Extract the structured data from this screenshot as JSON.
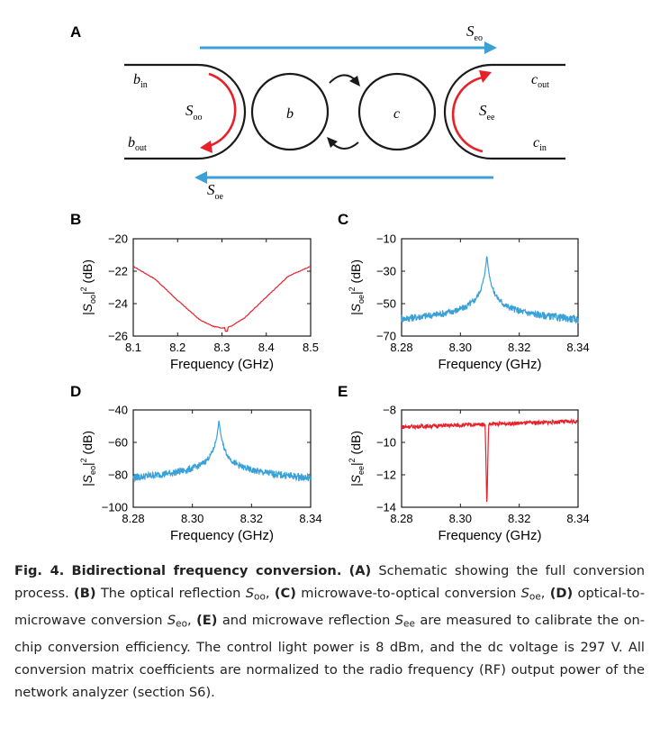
{
  "panels": {
    "A": {
      "letter": "A",
      "labels": {
        "b_in": {
          "main": "b",
          "sub": "in"
        },
        "b_out": {
          "main": "b",
          "sub": "out"
        },
        "c_out": {
          "main": "c",
          "sub": "out"
        },
        "c_in": {
          "main": "c",
          "sub": "in"
        },
        "s_oo": {
          "main": "S",
          "sub": "oo"
        },
        "s_ee": {
          "main": "S",
          "sub": "ee"
        },
        "s_eo": {
          "main": "S",
          "sub": "eo"
        },
        "s_oe": {
          "main": "S",
          "sub": "oe"
        },
        "res_b": "b",
        "res_c": "c"
      },
      "colors": {
        "red": "#e8202a",
        "blue": "#3aa0d8",
        "black": "#1a1a1a"
      }
    }
  },
  "chart_data": [
    {
      "panel": "B",
      "type": "line",
      "color": "#e8202a",
      "xlabel": "Frequency (GHz)",
      "ylabel": {
        "main": "|S",
        "sub": "oo",
        "sup": "2",
        "tail": " (dB)"
      },
      "xlim": [
        8.1,
        8.5
      ],
      "ylim": [
        -26,
        -20
      ],
      "xticks": [
        "8.1",
        "8.2",
        "8.3",
        "8.4",
        "8.5"
      ],
      "yticks": [
        "-20",
        "-22",
        "-24",
        "-26"
      ],
      "x": [
        8.1,
        8.15,
        8.2,
        8.25,
        8.28,
        8.3,
        8.32,
        8.35,
        8.4,
        8.45,
        8.5
      ],
      "y": [
        -21.7,
        -22.5,
        -23.8,
        -25.0,
        -25.4,
        -25.5,
        -25.4,
        -24.9,
        -23.6,
        -22.3,
        -21.7
      ],
      "dip": {
        "x": 8.31,
        "y": -25.7
      }
    },
    {
      "panel": "C",
      "type": "line",
      "color": "#3aa0d8",
      "xlabel": "Frequency (GHz)",
      "ylabel": {
        "main": "|S",
        "sub": "oe",
        "sup": "2",
        "tail": " (dB)"
      },
      "xlim": [
        8.28,
        8.34
      ],
      "ylim": [
        -70,
        -10
      ],
      "xticks": [
        "8.28",
        "8.30",
        "8.32",
        "8.34"
      ],
      "yticks": [
        "-10",
        "-30",
        "-50",
        "-70"
      ],
      "peak": {
        "x": 8.309,
        "y": -20,
        "base": -60,
        "width": 0.003,
        "noise": 2.5
      }
    },
    {
      "panel": "D",
      "type": "line",
      "color": "#3aa0d8",
      "xlabel": "Frequency (GHz)",
      "ylabel": {
        "main": "|S",
        "sub": "eo",
        "sup": "2",
        "tail": " (dB)"
      },
      "xlim": [
        8.28,
        8.34
      ],
      "ylim": [
        -100,
        -40
      ],
      "xticks": [
        "8.28",
        "8.30",
        "8.32",
        "8.34"
      ],
      "yticks": [
        "-40",
        "-60",
        "-80",
        "-100"
      ],
      "peak": {
        "x": 8.309,
        "y": -46,
        "base": -82,
        "width": 0.003,
        "noise": 2.5
      }
    },
    {
      "panel": "E",
      "type": "line",
      "color": "#e8202a",
      "xlabel": "Frequency (GHz)",
      "ylabel": {
        "main": "|S",
        "sub": "ee",
        "sup": "2",
        "tail": " (dB)"
      },
      "xlim": [
        8.28,
        8.34
      ],
      "ylim": [
        -14,
        -8
      ],
      "xticks": [
        "8.28",
        "8.30",
        "8.32",
        "8.34"
      ],
      "yticks": [
        "-8",
        "-10",
        "-12",
        "-14"
      ],
      "dipline": {
        "x": 8.309,
        "y": -14,
        "base": -8.8,
        "width": 0.0006,
        "noise": 0.12
      }
    }
  ],
  "panel_letters": {
    "B": "B",
    "C": "C",
    "D": "D",
    "E": "E"
  },
  "caption": {
    "fig": "Fig. 4.",
    "title": "Bidirectional frequency conversion.",
    "a": "(A)",
    "a_text": " Schematic showing the full conversion process. ",
    "b": "(B)",
    "b_text": " The optical reflection ",
    "b_sym": {
      "main": "S",
      "sub": "oo"
    },
    "c": "(C)",
    "c_text": " microwave-to-optical conversion ",
    "c_sym": {
      "main": "S",
      "sub": "oe"
    },
    "d": "(D)",
    "d_text": " optical-to-microwave conversion ",
    "d_sym": {
      "main": "S",
      "sub": "eo"
    },
    "e": "(E)",
    "e_text": " and microwave reflection ",
    "e_sym": {
      "main": "S",
      "sub": "ee"
    },
    "tail": " are measured to calibrate the on-chip conversion efficiency. The control light power is 8 dBm, and the dc voltage is 297 V. All conversion matrix coefficients are normalized to the radio frequency (RF) output power of the network analyzer (section S6)."
  }
}
